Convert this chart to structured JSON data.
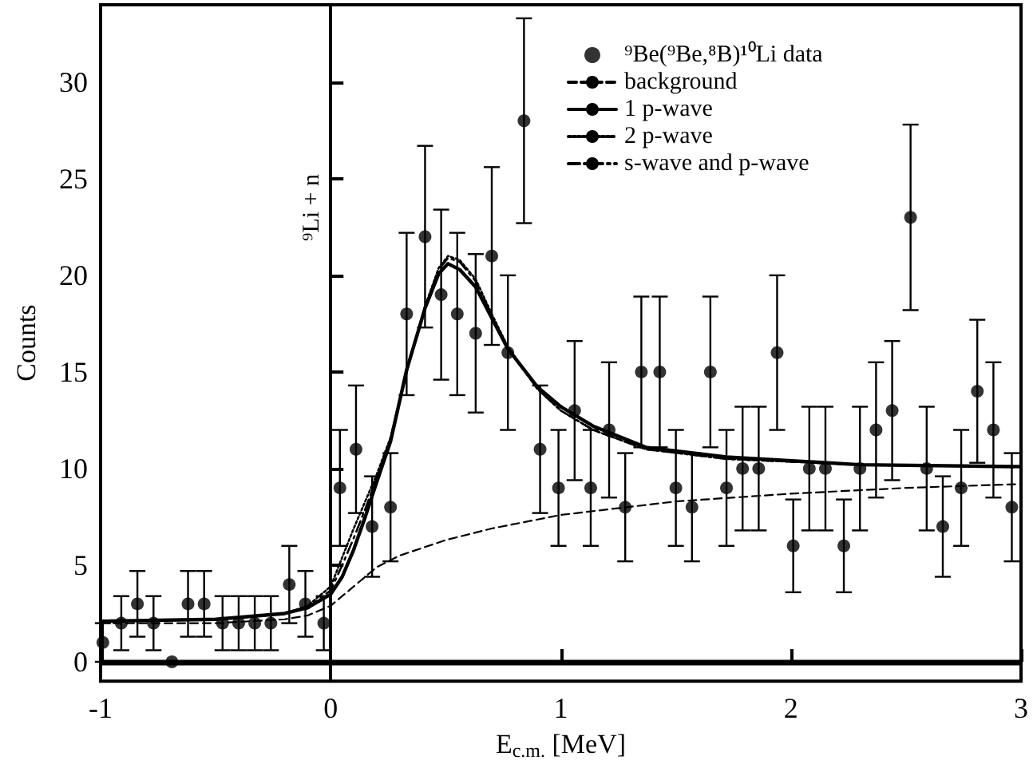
{
  "chart_data": {
    "type": "scatter",
    "xlabel": "E$_{c.m.}$ [MeV]",
    "ylabel": "Counts",
    "xlim": [
      -1,
      3
    ],
    "xticks": [
      -1,
      0,
      1,
      2,
      3
    ],
    "ylim": [
      -1,
      34
    ],
    "yticks": [
      0,
      5,
      10,
      15,
      20,
      25,
      30
    ],
    "grid": false,
    "legend": "top right",
    "ref_lines": [
      {
        "axis": "x",
        "value": 0,
        "label": "⁹Li + n",
        "color": "#000000"
      },
      {
        "axis": "y",
        "value": 0,
        "label": null,
        "color": "#000000"
      }
    ],
    "series": [
      {
        "name": "⁹Be(⁹Be,⁸B)¹⁰Li data",
        "marker": "circle",
        "color": "#000000",
        "x": [
          -0.99,
          -0.91,
          -0.84,
          -0.77,
          -0.69,
          -0.62,
          -0.55,
          -0.47,
          -0.4,
          -0.33,
          -0.26,
          -0.18,
          -0.11,
          -0.03,
          0.04,
          0.11,
          0.18,
          0.26,
          0.33,
          0.41,
          0.48,
          0.55,
          0.63,
          0.7,
          0.77,
          0.84,
          0.91,
          0.99,
          1.06,
          1.13,
          1.21,
          1.28,
          1.35,
          1.43,
          1.5,
          1.57,
          1.65,
          1.72,
          1.79,
          1.86,
          1.94,
          2.01,
          2.08,
          2.15,
          2.23,
          2.3,
          2.37,
          2.44,
          2.52,
          2.59,
          2.66,
          2.74,
          2.81,
          2.88,
          2.96
        ],
        "values": [
          1,
          2,
          3,
          2,
          0,
          3,
          3,
          2,
          2,
          2,
          2,
          4,
          3,
          2,
          9,
          11,
          7,
          8,
          18,
          22,
          19,
          18,
          17,
          21,
          16,
          28,
          11,
          9,
          13,
          9,
          12,
          8,
          15,
          15,
          9,
          8,
          15,
          9,
          10,
          10,
          16,
          6,
          10,
          10,
          6,
          10,
          12,
          13,
          23,
          10,
          7,
          9,
          14,
          12,
          8
        ],
        "errors": [
          1,
          1.4,
          1.7,
          1.4,
          null,
          1.7,
          1.7,
          1.4,
          1.4,
          1.4,
          1.4,
          2,
          1.7,
          1.4,
          3,
          3.3,
          2.6,
          2.8,
          4.2,
          4.7,
          4.4,
          4.2,
          4.1,
          4.6,
          4,
          5.3,
          3.3,
          3,
          3.6,
          3,
          3.5,
          2.8,
          3.9,
          3.9,
          3,
          2.8,
          3.9,
          3,
          3.2,
          3.2,
          4,
          2.4,
          3.2,
          3.2,
          2.4,
          3.2,
          3.5,
          3.6,
          4.8,
          3.2,
          2.6,
          3,
          3.7,
          3.5,
          2.8
        ]
      },
      {
        "name": "background",
        "type": "line",
        "marker": "none",
        "line_style": "dashed",
        "color": "#000000",
        "x": [
          -1,
          -0.5,
          -0.2,
          -0.1,
          0,
          0.05,
          0.1,
          0.2,
          0.3,
          0.5,
          0.7,
          1,
          1.5,
          2,
          2.5,
          3
        ],
        "values": [
          2,
          2.0,
          2.2,
          2.4,
          2.9,
          3.4,
          3.9,
          4.9,
          5.5,
          6.3,
          6.9,
          7.6,
          8.3,
          8.7,
          9.0,
          9.2
        ]
      },
      {
        "name": "1 p-wave",
        "type": "line",
        "marker": "none",
        "line_style": "solid",
        "color": "#000000",
        "x": [
          -1,
          -0.5,
          -0.2,
          -0.1,
          0,
          0.05,
          0.1,
          0.15,
          0.2,
          0.26,
          0.33,
          0.41,
          0.47,
          0.51,
          0.56,
          0.63,
          0.7,
          0.77,
          0.9,
          1.0,
          1.14,
          1.37,
          1.72,
          2.3,
          3
        ],
        "values": [
          2.1,
          2.2,
          2.5,
          2.8,
          3.5,
          4.4,
          5.8,
          7.5,
          9.3,
          11.4,
          15.1,
          18.3,
          20.1,
          20.6,
          20.3,
          19.4,
          17.8,
          16.2,
          14.2,
          13.2,
          12.2,
          11.1,
          10.6,
          10.2,
          10.1
        ]
      },
      {
        "name": "2 p-wave",
        "type": "line",
        "marker": "none",
        "line_style": "dotted",
        "color": "#000000",
        "x": [
          -1,
          -0.5,
          -0.2,
          -0.1,
          0,
          0.05,
          0.1,
          0.15,
          0.2,
          0.26,
          0.33,
          0.41,
          0.47,
          0.51,
          0.56,
          0.63,
          0.7,
          0.77,
          0.9,
          1.0,
          1.14,
          1.37,
          1.72,
          2.3,
          3
        ],
        "values": [
          2.1,
          2.2,
          2.5,
          2.9,
          3.9,
          5.4,
          6.9,
          8.3,
          9.7,
          11.6,
          15.0,
          18.4,
          20.4,
          21.0,
          20.8,
          19.8,
          18.0,
          16.3,
          14.1,
          13.0,
          12.0,
          11.0,
          10.5,
          10.2,
          10.1
        ]
      },
      {
        "name": "s-wave and p-wave",
        "type": "line",
        "marker": "none",
        "line_style": "dashdot",
        "color": "#000000",
        "x": [
          -1,
          -0.5,
          -0.2,
          -0.1,
          0,
          0.05,
          0.1,
          0.15,
          0.2,
          0.26,
          0.33,
          0.41,
          0.47,
          0.51,
          0.56,
          0.63,
          0.7,
          0.77,
          0.9,
          1.0,
          1.14,
          1.37,
          1.72,
          2.3,
          3
        ],
        "values": [
          2.1,
          2.2,
          2.5,
          2.8,
          3.7,
          5.0,
          6.4,
          7.9,
          9.5,
          11.5,
          15.0,
          18.4,
          20.3,
          20.9,
          20.7,
          19.7,
          17.9,
          16.2,
          14.1,
          13.0,
          12.0,
          11.0,
          10.5,
          10.2,
          10.1
        ]
      }
    ]
  }
}
